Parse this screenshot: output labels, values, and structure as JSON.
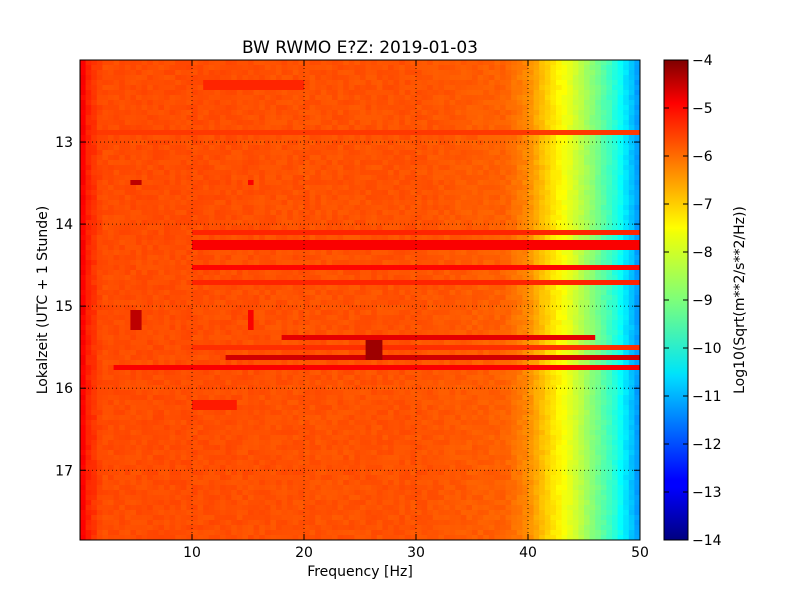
{
  "chart_data": {
    "type": "heatmap",
    "title": "BW RWMO E?Z: 2019-01-03",
    "xlabel": "Frequency [Hz]",
    "ylabel": "Lokalzeit (UTC + 1 Stunde)",
    "xlim": [
      0,
      50
    ],
    "ylim": [
      12,
      17.85
    ],
    "y_inverted": true,
    "x_ticks": [
      10,
      20,
      30,
      40,
      50
    ],
    "y_ticks": [
      13,
      14,
      15,
      16,
      17
    ],
    "grid": true,
    "colormap": "jet",
    "colorbar": {
      "label": "Log10(Sqrt(m**2/s**2/Hz))",
      "range": [
        -14,
        -4
      ],
      "ticks": [
        -4,
        -5,
        -6,
        -7,
        -8,
        -9,
        -10,
        -11,
        -12,
        -13,
        -14
      ]
    },
    "base_profile": {
      "frequency_hz": [
        0,
        0.5,
        2,
        5,
        10,
        20,
        30,
        38,
        40,
        42,
        44,
        46,
        48,
        49.5,
        50
      ],
      "value": [
        -5.0,
        -5.5,
        -6.0,
        -6.0,
        -6.0,
        -6.05,
        -6.05,
        -6.2,
        -6.6,
        -7.4,
        -8.1,
        -9.0,
        -10.0,
        -11.0,
        -11.4
      ]
    },
    "horizontal_bands": [
      {
        "time": 12.3,
        "f_start": 11,
        "f_end": 20,
        "value": -5.6
      },
      {
        "time": 12.9,
        "f_start": 0,
        "f_end": 50,
        "value": -5.8
      },
      {
        "time": 14.1,
        "f_start": 10,
        "f_end": 50,
        "value": -5.6
      },
      {
        "time": 14.25,
        "f_start": 10,
        "f_end": 50,
        "value": -5.2
      },
      {
        "time": 14.55,
        "f_start": 10,
        "f_end": 50,
        "value": -5.3
      },
      {
        "time": 14.7,
        "f_start": 10,
        "f_end": 50,
        "value": -5.6
      },
      {
        "time": 15.4,
        "f_start": 18,
        "f_end": 46,
        "value": -5.0
      },
      {
        "time": 15.5,
        "f_start": 10,
        "f_end": 50,
        "value": -5.7
      },
      {
        "time": 15.63,
        "f_start": 13,
        "f_end": 50,
        "value": -4.8
      },
      {
        "time": 15.75,
        "f_start": 3,
        "f_end": 50,
        "value": -5.2
      },
      {
        "time": 16.2,
        "f_start": 10,
        "f_end": 14,
        "value": -5.5
      }
    ],
    "vertical_marks": [
      {
        "frequency": 5,
        "t_start": 13.45,
        "t_end": 13.55,
        "value": -4.6
      },
      {
        "frequency": 15.2,
        "t_start": 13.45,
        "t_end": 13.55,
        "value": -5.2
      },
      {
        "frequency": 5,
        "t_start": 15.05,
        "t_end": 15.3,
        "value": -4.6
      },
      {
        "frequency": 15.2,
        "t_start": 15.05,
        "t_end": 15.3,
        "value": -5.2
      }
    ],
    "hotspots": [
      {
        "frequency": 26.3,
        "time": 15.55,
        "value": -4.3
      }
    ]
  }
}
